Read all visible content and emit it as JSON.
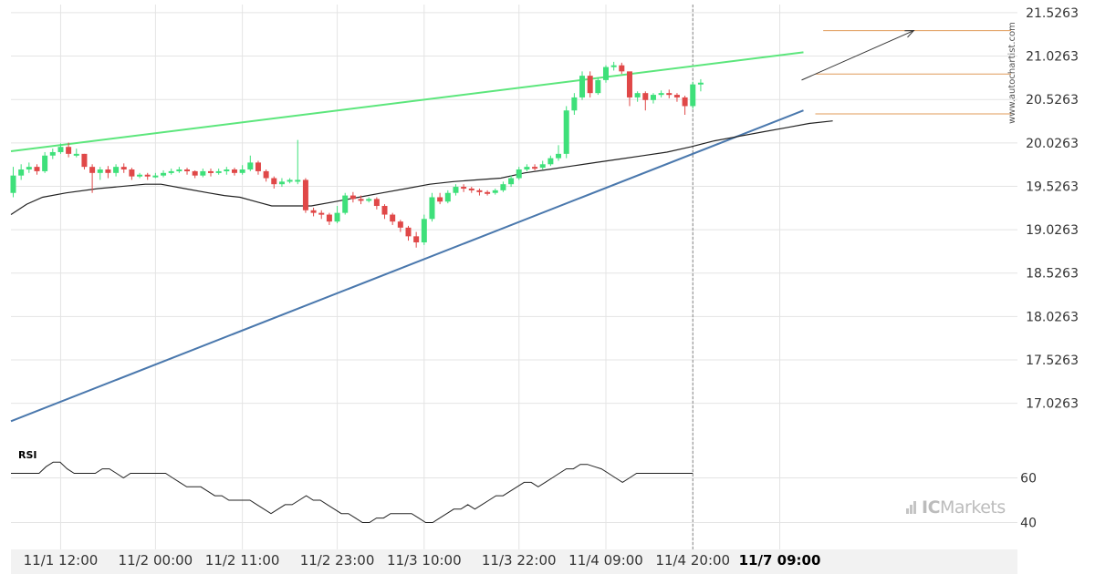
{
  "chart_data": {
    "type": "candlestick",
    "price_axis": {
      "ticks": [
        "21.5263",
        "21.0263",
        "20.5263",
        "20.0263",
        "19.5263",
        "19.0263",
        "18.5263",
        "18.0263",
        "17.5263",
        "17.0263"
      ],
      "values": [
        21.5263,
        21.0263,
        20.5263,
        20.0263,
        19.5263,
        19.0263,
        18.5263,
        18.0263,
        17.5263,
        17.0263
      ],
      "ylim": [
        16.55,
        21.62
      ]
    },
    "x_axis": {
      "labels": [
        "11/1 12:00",
        "11/2 00:00",
        "11/2 11:00",
        "11/2 23:00",
        "11/3 10:00",
        "11/3 22:00",
        "11/4 09:00",
        "11/4 20:00",
        "11/7 09:00"
      ],
      "label_index": [
        6,
        18,
        29,
        41,
        52,
        64,
        75,
        86,
        97
      ],
      "current_label": "11/7 09:00"
    },
    "candles": [
      [
        19.45,
        19.65,
        19.75,
        19.4
      ],
      [
        19.65,
        19.72,
        19.78,
        19.6
      ],
      [
        19.72,
        19.75,
        19.8,
        19.68
      ],
      [
        19.75,
        19.7,
        19.78,
        19.66
      ],
      [
        19.7,
        19.88,
        19.92,
        19.68
      ],
      [
        19.88,
        19.92,
        19.96,
        19.84
      ],
      [
        19.92,
        19.98,
        20.02,
        19.9
      ],
      [
        19.98,
        19.9,
        20.03,
        19.86
      ],
      [
        19.9,
        19.9,
        19.96,
        19.86
      ],
      [
        19.9,
        19.75,
        19.9,
        19.72
      ],
      [
        19.75,
        19.68,
        19.78,
        19.45
      ],
      [
        19.68,
        19.72,
        19.75,
        19.6
      ],
      [
        19.72,
        19.68,
        19.76,
        19.62
      ],
      [
        19.68,
        19.75,
        19.78,
        19.64
      ],
      [
        19.75,
        19.72,
        19.79,
        19.68
      ],
      [
        19.72,
        19.64,
        19.74,
        19.6
      ],
      [
        19.64,
        19.66,
        19.68,
        19.62
      ],
      [
        19.66,
        19.64,
        19.68,
        19.6
      ],
      [
        19.64,
        19.65,
        19.68,
        19.62
      ],
      [
        19.65,
        19.68,
        19.71,
        19.63
      ],
      [
        19.68,
        19.7,
        19.73,
        19.66
      ],
      [
        19.7,
        19.72,
        19.75,
        19.68
      ],
      [
        19.72,
        19.7,
        19.74,
        19.66
      ],
      [
        19.7,
        19.65,
        19.71,
        19.62
      ],
      [
        19.65,
        19.7,
        19.73,
        19.63
      ],
      [
        19.7,
        19.68,
        19.73,
        19.64
      ],
      [
        19.68,
        19.7,
        19.73,
        19.66
      ],
      [
        19.7,
        19.72,
        19.75,
        19.66
      ],
      [
        19.72,
        19.68,
        19.74,
        19.65
      ],
      [
        19.68,
        19.72,
        19.77,
        19.66
      ],
      [
        19.72,
        19.8,
        19.88,
        19.7
      ],
      [
        19.8,
        19.7,
        19.82,
        19.66
      ],
      [
        19.7,
        19.62,
        19.72,
        19.58
      ],
      [
        19.62,
        19.55,
        19.64,
        19.5
      ],
      [
        19.55,
        19.58,
        19.62,
        19.52
      ],
      [
        19.58,
        19.6,
        19.62,
        19.56
      ],
      [
        19.6,
        19.6,
        20.06,
        19.55
      ],
      [
        19.6,
        19.25,
        19.62,
        19.22
      ],
      [
        19.25,
        19.22,
        19.28,
        19.18
      ],
      [
        19.22,
        19.2,
        19.25,
        19.15
      ],
      [
        19.2,
        19.12,
        19.22,
        19.08
      ],
      [
        19.12,
        19.22,
        19.3,
        19.1
      ],
      [
        19.22,
        19.42,
        19.45,
        19.2
      ],
      [
        19.42,
        19.38,
        19.46,
        19.34
      ],
      [
        19.38,
        19.36,
        19.42,
        19.32
      ],
      [
        19.36,
        19.38,
        19.4,
        19.34
      ],
      [
        19.38,
        19.3,
        19.4,
        19.26
      ],
      [
        19.3,
        19.2,
        19.32,
        19.15
      ],
      [
        19.2,
        19.12,
        19.22,
        19.08
      ],
      [
        19.12,
        19.05,
        19.14,
        19.0
      ],
      [
        19.05,
        18.95,
        19.07,
        18.9
      ],
      [
        18.95,
        18.88,
        19.0,
        18.82
      ],
      [
        18.88,
        19.15,
        19.2,
        18.85
      ],
      [
        19.15,
        19.4,
        19.45,
        19.12
      ],
      [
        19.4,
        19.35,
        19.45,
        19.32
      ],
      [
        19.35,
        19.45,
        19.48,
        19.33
      ],
      [
        19.45,
        19.52,
        19.55,
        19.42
      ],
      [
        19.52,
        19.5,
        19.55,
        19.46
      ],
      [
        19.5,
        19.48,
        19.52,
        19.45
      ],
      [
        19.48,
        19.46,
        19.5,
        19.42
      ],
      [
        19.46,
        19.45,
        19.48,
        19.42
      ],
      [
        19.45,
        19.48,
        19.5,
        19.43
      ],
      [
        19.48,
        19.55,
        19.58,
        19.46
      ],
      [
        19.55,
        19.62,
        19.65,
        19.52
      ],
      [
        19.62,
        19.72,
        19.75,
        19.6
      ],
      [
        19.72,
        19.75,
        19.78,
        19.7
      ],
      [
        19.75,
        19.74,
        19.78,
        19.71
      ],
      [
        19.74,
        19.78,
        19.82,
        19.72
      ],
      [
        19.78,
        19.85,
        19.88,
        19.76
      ],
      [
        19.85,
        19.9,
        20.0,
        19.82
      ],
      [
        19.9,
        20.4,
        20.45,
        19.85
      ],
      [
        20.4,
        20.55,
        20.6,
        20.35
      ],
      [
        20.55,
        20.8,
        20.85,
        20.52
      ],
      [
        20.8,
        20.6,
        20.85,
        20.55
      ],
      [
        20.6,
        20.75,
        20.78,
        20.58
      ],
      [
        20.75,
        20.9,
        20.92,
        20.72
      ],
      [
        20.9,
        20.92,
        20.96,
        20.86
      ],
      [
        20.92,
        20.85,
        20.95,
        20.82
      ],
      [
        20.85,
        20.55,
        20.6,
        20.45
      ],
      [
        20.55,
        20.6,
        20.62,
        20.5
      ],
      [
        20.6,
        20.52,
        20.62,
        20.4
      ],
      [
        20.52,
        20.58,
        20.6,
        20.48
      ],
      [
        20.58,
        20.6,
        20.63,
        20.55
      ],
      [
        20.6,
        20.58,
        20.64,
        20.54
      ],
      [
        20.58,
        20.55,
        20.6,
        20.5
      ],
      [
        20.55,
        20.45,
        20.57,
        20.35
      ],
      [
        20.45,
        20.7,
        20.73,
        20.42
      ],
      [
        20.7,
        20.72,
        20.76,
        20.62
      ]
    ],
    "moving_average": [
      [
        0,
        19.2
      ],
      [
        4,
        19.32
      ],
      [
        8,
        19.4
      ],
      [
        14,
        19.45
      ],
      [
        22,
        19.5
      ],
      [
        34,
        19.55
      ],
      [
        38,
        19.55
      ],
      [
        44,
        19.5
      ],
      [
        50,
        19.45
      ],
      [
        54,
        19.42
      ],
      [
        58,
        19.4
      ],
      [
        62,
        19.35
      ],
      [
        66,
        19.3
      ],
      [
        72,
        19.3
      ],
      [
        76,
        19.3
      ],
      [
        82,
        19.35
      ],
      [
        88,
        19.4
      ],
      [
        94,
        19.45
      ],
      [
        100,
        19.5
      ],
      [
        106,
        19.55
      ],
      [
        112,
        19.58
      ],
      [
        118,
        19.6
      ],
      [
        124,
        19.62
      ],
      [
        130,
        19.68
      ],
      [
        136,
        19.72
      ],
      [
        142,
        19.76
      ],
      [
        148,
        19.8
      ],
      [
        154,
        19.84
      ],
      [
        160,
        19.88
      ],
      [
        166,
        19.92
      ],
      [
        172,
        19.98
      ],
      [
        178,
        20.05
      ],
      [
        184,
        20.1
      ],
      [
        190,
        20.15
      ],
      [
        196,
        20.2
      ],
      [
        202,
        20.25
      ],
      [
        208,
        20.28
      ]
    ],
    "trendlines": [
      {
        "name": "upper-resistance",
        "color": "#5ce67c",
        "from": [
          0,
          19.93
        ],
        "to": [
          100,
          21.07
        ]
      },
      {
        "name": "lower-support",
        "color": "#4a78ad",
        "from": [
          0,
          16.82
        ],
        "to": [
          100,
          20.4
        ]
      }
    ],
    "levels": [
      {
        "name": "target-level",
        "value": 21.32,
        "color": "#e09b5a"
      },
      {
        "name": "high-level",
        "value": 20.82,
        "color": "#e09b5a"
      },
      {
        "name": "low-level",
        "value": 20.36,
        "color": "#e09b5a"
      }
    ],
    "forecast_arrow": {
      "from": [
        100,
        20.75
      ],
      "to": [
        118,
        21.32
      ],
      "color": "#333333"
    },
    "rsi": {
      "label": "RSI",
      "ticks": [
        "60",
        "40"
      ],
      "tick_values": [
        60,
        40
      ],
      "ylim": [
        28,
        72
      ],
      "values": [
        62,
        62,
        62,
        62,
        62,
        65,
        67,
        67,
        64,
        62,
        62,
        62,
        62,
        64,
        64,
        62,
        60,
        62,
        62,
        62,
        62,
        62,
        62,
        60,
        58,
        56,
        56,
        56,
        54,
        52,
        52,
        50,
        50,
        50,
        50,
        48,
        46,
        44,
        46,
        48,
        48,
        50,
        52,
        50,
        50,
        48,
        46,
        44,
        44,
        42,
        40,
        40,
        42,
        42,
        44,
        44,
        44,
        44,
        42,
        40,
        40,
        42,
        44,
        46,
        46,
        48,
        46,
        48,
        50,
        52,
        52,
        54,
        56,
        58,
        58,
        56,
        58,
        60,
        62,
        64,
        64,
        66,
        66,
        65,
        64,
        62,
        60,
        58,
        60,
        62,
        62,
        62,
        62,
        62,
        62,
        62,
        62,
        62
      ]
    },
    "colors": {
      "bull": "#3ee07a",
      "bear": "#e04848",
      "ma": "#222222",
      "rsi_line": "#222222",
      "grid": "#e4e4e4",
      "axis_bg": "#f2f2f2"
    },
    "watermark": "www.autochartist.com",
    "logo_text": {
      "prefix": "IC",
      "suffix": "Markets"
    }
  }
}
